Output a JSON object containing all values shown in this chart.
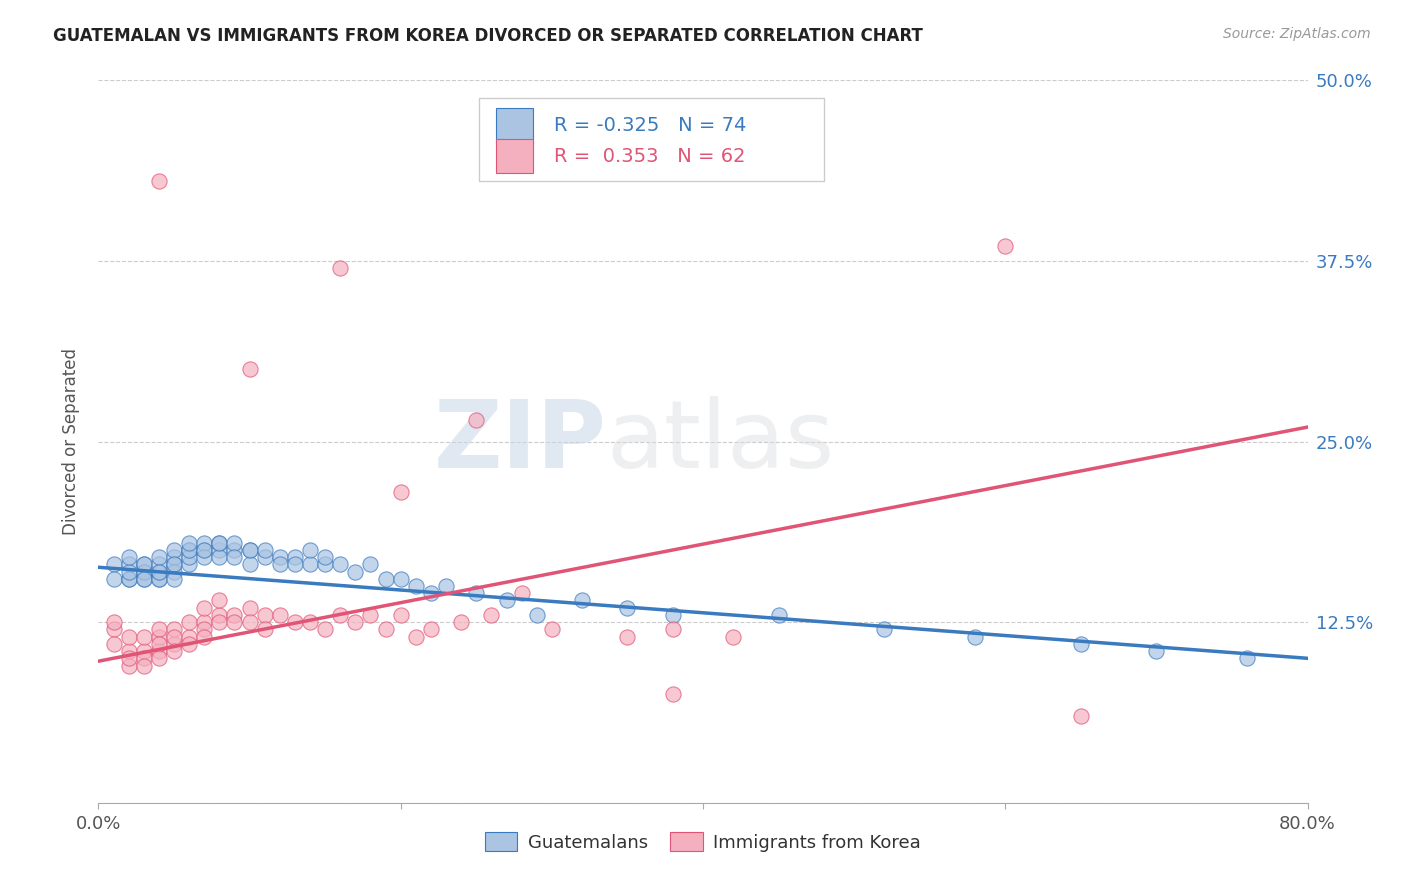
{
  "title": "GUATEMALAN VS IMMIGRANTS FROM KOREA DIVORCED OR SEPARATED CORRELATION CHART",
  "source": "Source: ZipAtlas.com",
  "ylabel": "Divorced or Separated",
  "xlim": [
    0.0,
    0.8
  ],
  "ylim": [
    0.0,
    0.5
  ],
  "xticks": [
    0.0,
    0.2,
    0.4,
    0.6,
    0.8
  ],
  "xticklabels": [
    "0.0%",
    "",
    "",
    "",
    "80.0%"
  ],
  "yticks": [
    0.0,
    0.125,
    0.25,
    0.375,
    0.5
  ],
  "yticklabels": [
    "",
    "12.5%",
    "25.0%",
    "37.5%",
    "50.0%"
  ],
  "legend_labels": [
    "Guatemalans",
    "Immigrants from Korea"
  ],
  "blue_color": "#aac4e2",
  "pink_color": "#f5b0c0",
  "blue_line_color": "#3a7abf",
  "pink_line_color": "#e05575",
  "blue_R": -0.325,
  "blue_N": 74,
  "pink_R": 0.353,
  "pink_N": 62,
  "watermark": "ZIPatlas",
  "blue_scatter_x": [
    0.01,
    0.01,
    0.02,
    0.02,
    0.02,
    0.02,
    0.02,
    0.03,
    0.03,
    0.03,
    0.03,
    0.03,
    0.03,
    0.04,
    0.04,
    0.04,
    0.04,
    0.04,
    0.04,
    0.05,
    0.05,
    0.05,
    0.05,
    0.05,
    0.05,
    0.06,
    0.06,
    0.06,
    0.06,
    0.06,
    0.07,
    0.07,
    0.07,
    0.07,
    0.08,
    0.08,
    0.08,
    0.08,
    0.09,
    0.09,
    0.09,
    0.1,
    0.1,
    0.1,
    0.11,
    0.11,
    0.12,
    0.12,
    0.13,
    0.13,
    0.14,
    0.14,
    0.15,
    0.15,
    0.16,
    0.17,
    0.18,
    0.19,
    0.2,
    0.21,
    0.22,
    0.23,
    0.25,
    0.27,
    0.29,
    0.32,
    0.35,
    0.38,
    0.45,
    0.52,
    0.58,
    0.65,
    0.7,
    0.76
  ],
  "blue_scatter_y": [
    0.165,
    0.155,
    0.165,
    0.155,
    0.155,
    0.16,
    0.17,
    0.16,
    0.165,
    0.155,
    0.16,
    0.165,
    0.155,
    0.155,
    0.16,
    0.165,
    0.17,
    0.155,
    0.16,
    0.165,
    0.17,
    0.175,
    0.16,
    0.165,
    0.155,
    0.165,
    0.175,
    0.17,
    0.175,
    0.18,
    0.175,
    0.18,
    0.17,
    0.175,
    0.175,
    0.18,
    0.17,
    0.18,
    0.175,
    0.18,
    0.17,
    0.175,
    0.165,
    0.175,
    0.17,
    0.175,
    0.17,
    0.165,
    0.17,
    0.165,
    0.165,
    0.175,
    0.165,
    0.17,
    0.165,
    0.16,
    0.165,
    0.155,
    0.155,
    0.15,
    0.145,
    0.15,
    0.145,
    0.14,
    0.13,
    0.14,
    0.135,
    0.13,
    0.13,
    0.12,
    0.115,
    0.11,
    0.105,
    0.1
  ],
  "pink_scatter_x": [
    0.01,
    0.01,
    0.01,
    0.02,
    0.02,
    0.02,
    0.02,
    0.03,
    0.03,
    0.03,
    0.03,
    0.04,
    0.04,
    0.04,
    0.04,
    0.04,
    0.05,
    0.05,
    0.05,
    0.05,
    0.06,
    0.06,
    0.06,
    0.07,
    0.07,
    0.07,
    0.07,
    0.08,
    0.08,
    0.08,
    0.09,
    0.09,
    0.1,
    0.1,
    0.11,
    0.11,
    0.12,
    0.13,
    0.14,
    0.15,
    0.16,
    0.17,
    0.18,
    0.19,
    0.2,
    0.21,
    0.22,
    0.24,
    0.26,
    0.28,
    0.3,
    0.35,
    0.38,
    0.42,
    0.2,
    0.1,
    0.04,
    0.16,
    0.25,
    0.6,
    0.65,
    0.38
  ],
  "pink_scatter_y": [
    0.12,
    0.11,
    0.125,
    0.105,
    0.095,
    0.1,
    0.115,
    0.105,
    0.115,
    0.1,
    0.095,
    0.105,
    0.115,
    0.12,
    0.11,
    0.1,
    0.11,
    0.12,
    0.115,
    0.105,
    0.115,
    0.125,
    0.11,
    0.125,
    0.135,
    0.12,
    0.115,
    0.13,
    0.14,
    0.125,
    0.13,
    0.125,
    0.135,
    0.125,
    0.13,
    0.12,
    0.13,
    0.125,
    0.125,
    0.12,
    0.13,
    0.125,
    0.13,
    0.12,
    0.13,
    0.115,
    0.12,
    0.125,
    0.13,
    0.145,
    0.12,
    0.115,
    0.12,
    0.115,
    0.215,
    0.3,
    0.43,
    0.37,
    0.265,
    0.385,
    0.06,
    0.075
  ],
  "blue_line_start_y": 0.163,
  "blue_line_end_y": 0.1,
  "pink_line_start_y": 0.098,
  "pink_line_end_y": 0.26
}
